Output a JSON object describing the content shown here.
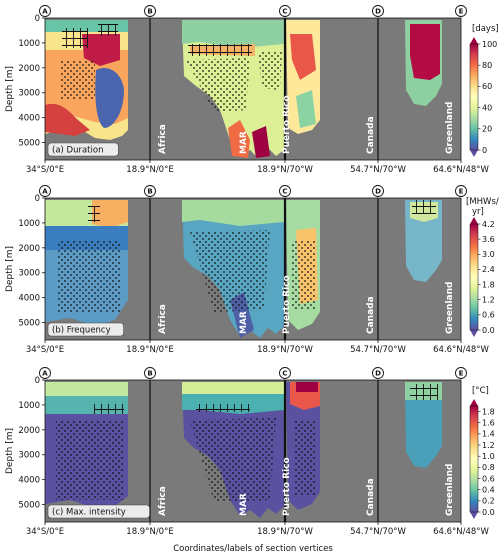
{
  "figure": {
    "ylabel": "Depth [m]",
    "xlabel": "Coordinates/labels of section vertices",
    "vertex_markers": [
      "A",
      "B",
      "C",
      "D",
      "E"
    ],
    "x_tick_labels": [
      "34°S/0°E",
      "18.9°N/0°E",
      "18.9°N/70°W",
      "54.7°N/70°W",
      "64.6°N/48°W"
    ],
    "place_labels": [
      "Africa",
      "MAR",
      "Puerto Rico",
      "Canada",
      "Greenland"
    ],
    "colors": {
      "background": "#7a7a7a",
      "land": "#7a7a7a"
    }
  },
  "chart_data": [
    {
      "type": "heatmap",
      "title": "(a) Duration",
      "ylabel": "Depth [m]",
      "y_ticks": [
        0,
        1000,
        2000,
        3000,
        4000,
        5000
      ],
      "ylim": [
        5700,
        0
      ],
      "colorbar": {
        "unit": "[days]",
        "ticks": [
          "0",
          "20",
          "40",
          "60",
          "80",
          "100"
        ],
        "range": [
          0,
          100
        ],
        "colormap": "Spectral_r"
      },
      "x_ticks": [
        "34°S/0°E",
        "18.9°N/0°E",
        "18.9°N/70°W",
        "54.7°N/70°W",
        "64.6°N/48°W"
      ]
    },
    {
      "type": "heatmap",
      "title": "(b) Frequency",
      "ylabel": "Depth [m]",
      "y_ticks": [
        0,
        1000,
        2000,
        3000,
        4000,
        5000
      ],
      "ylim": [
        5700,
        0
      ],
      "colorbar": {
        "unit_line1": "[MHWs/",
        "unit_line2": "yr]",
        "ticks": [
          "0.0",
          "0.6",
          "1.2",
          "1.8",
          "2.4",
          "3.0",
          "3.6",
          "4.2"
        ],
        "range": [
          0,
          4.2
        ],
        "colormap": "Spectral_r"
      },
      "x_ticks": [
        "34°S/0°E",
        "18.9°N/0°E",
        "18.9°N/70°W",
        "54.7°N/70°W",
        "64.6°N/48°W"
      ]
    },
    {
      "type": "heatmap",
      "title": "(c) Max. intensity",
      "ylabel": "Depth [m]",
      "y_ticks": [
        0,
        1000,
        2000,
        3000,
        4000,
        5000
      ],
      "ylim": [
        5700,
        0
      ],
      "colorbar": {
        "unit": "[°C]",
        "ticks": [
          "0.0",
          "0.2",
          "0.4",
          "0.6",
          "0.8",
          "1.0",
          "1.2",
          "1.4",
          "1.6",
          "1.8"
        ],
        "range": [
          0,
          1.9
        ],
        "colormap": "Spectral_r"
      },
      "x_ticks": [
        "34°S/0°E",
        "18.9°N/0°E",
        "18.9°N/70°W",
        "54.7°N/70°W",
        "64.6°N/48°W"
      ]
    }
  ]
}
